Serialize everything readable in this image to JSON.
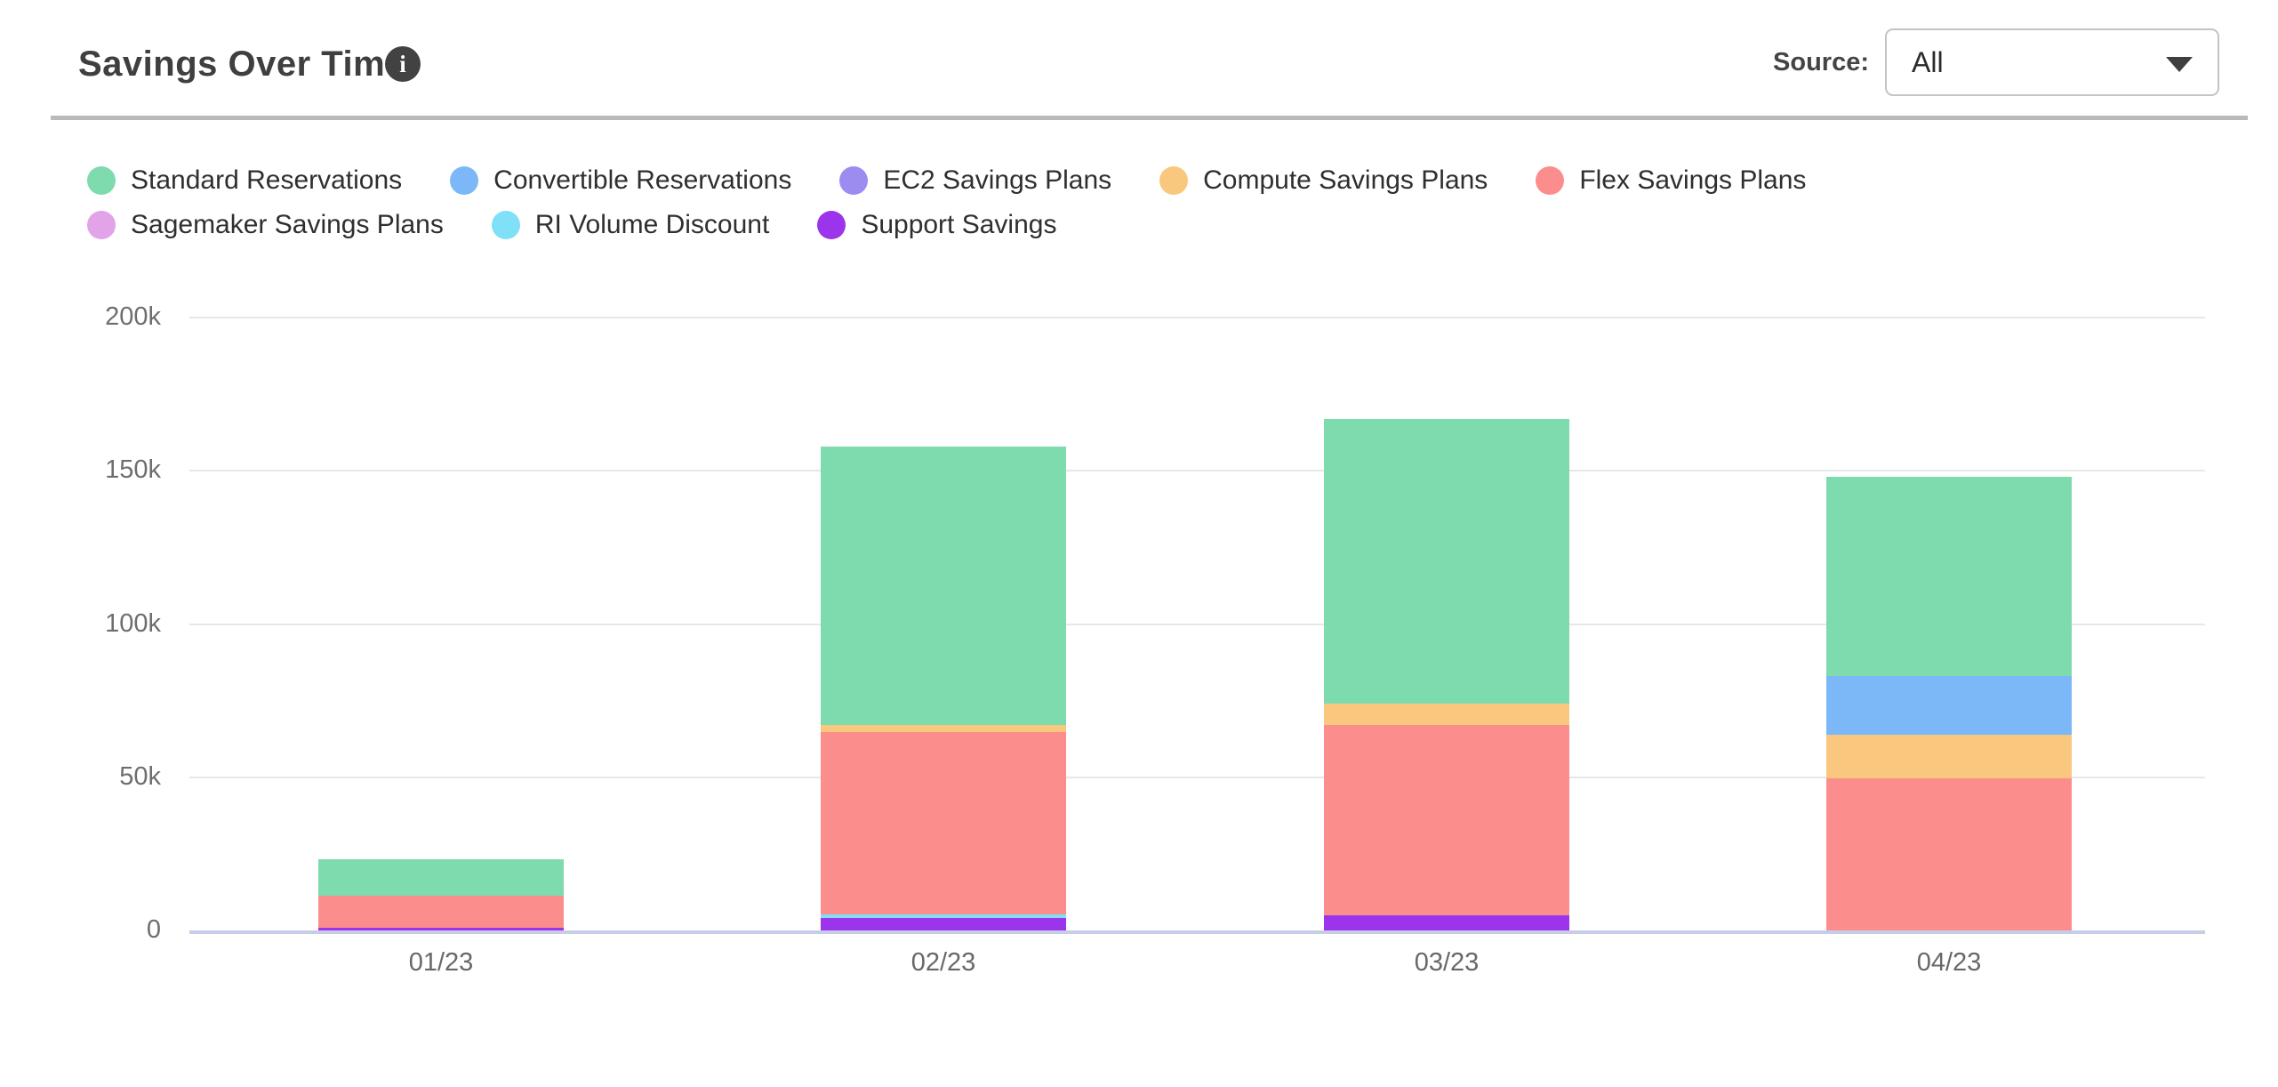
{
  "header": {
    "title": "Savings Over Time",
    "info_icon_glyph": "i",
    "source_label": "Source:",
    "source_value": "All"
  },
  "chart_data": {
    "type": "bar",
    "stacked": true,
    "title": "Savings Over Time",
    "categories": [
      "01/23",
      "02/23",
      "03/23",
      "04/23"
    ],
    "value_unit": "thousands (axis labeled with k)",
    "ylim": [
      0,
      200
    ],
    "grid": true,
    "legend_position": "top-left",
    "yticks": [
      {
        "value": 0,
        "label": "0"
      },
      {
        "value": 50,
        "label": "50k"
      },
      {
        "value": 100,
        "label": "100k"
      },
      {
        "value": 150,
        "label": "150k"
      },
      {
        "value": 200,
        "label": "200k"
      }
    ],
    "series": [
      {
        "name": "Standard Reservations",
        "color": "#7edbae",
        "values_k": [
          12.0,
          90.8,
          93.0,
          65.0
        ]
      },
      {
        "name": "Convertible Reservations",
        "color": "#7cb8f7",
        "values_k": [
          0,
          0,
          0,
          19.0
        ]
      },
      {
        "name": "EC2 Savings Plans",
        "color": "#9c8cf2",
        "values_k": [
          0,
          0,
          0,
          0
        ]
      },
      {
        "name": "Compute Savings Plans",
        "color": "#f9c77e",
        "values_k": [
          0,
          2.5,
          7.0,
          14.5
        ]
      },
      {
        "name": "Flex Savings Plans",
        "color": "#fc8d8d",
        "values_k": [
          10.2,
          59.5,
          62.0,
          49.5
        ]
      },
      {
        "name": "Sagemaker Savings Plans",
        "color": "#e2a3e8",
        "values_k": [
          0,
          0,
          0,
          0
        ]
      },
      {
        "name": "RI Volume Discount",
        "color": "#7fe0f7",
        "values_k": [
          0,
          1.2,
          0,
          0
        ]
      },
      {
        "name": "Support Savings",
        "color": "#9b34ea",
        "values_k": [
          1.0,
          4.0,
          5.0,
          0
        ]
      }
    ],
    "stack_order_bottom_to_top": [
      "Support Savings",
      "RI Volume Discount",
      "Sagemaker Savings Plans",
      "Flex Savings Plans",
      "Compute Savings Plans",
      "EC2 Savings Plans",
      "Convertible Reservations",
      "Standard Reservations"
    ],
    "totals_k": [
      23.2,
      158.0,
      167.0,
      148.0
    ],
    "legend_rows": [
      [
        0,
        1,
        2,
        3,
        4
      ],
      [
        5,
        6,
        7
      ]
    ]
  },
  "style_colors": {
    "gridline": "#e7e7e7",
    "axis_line": "#c7cde6",
    "tick_text": "#6e6e6e",
    "divider": "#b9b9b9",
    "title_text": "#3f3f3f"
  }
}
